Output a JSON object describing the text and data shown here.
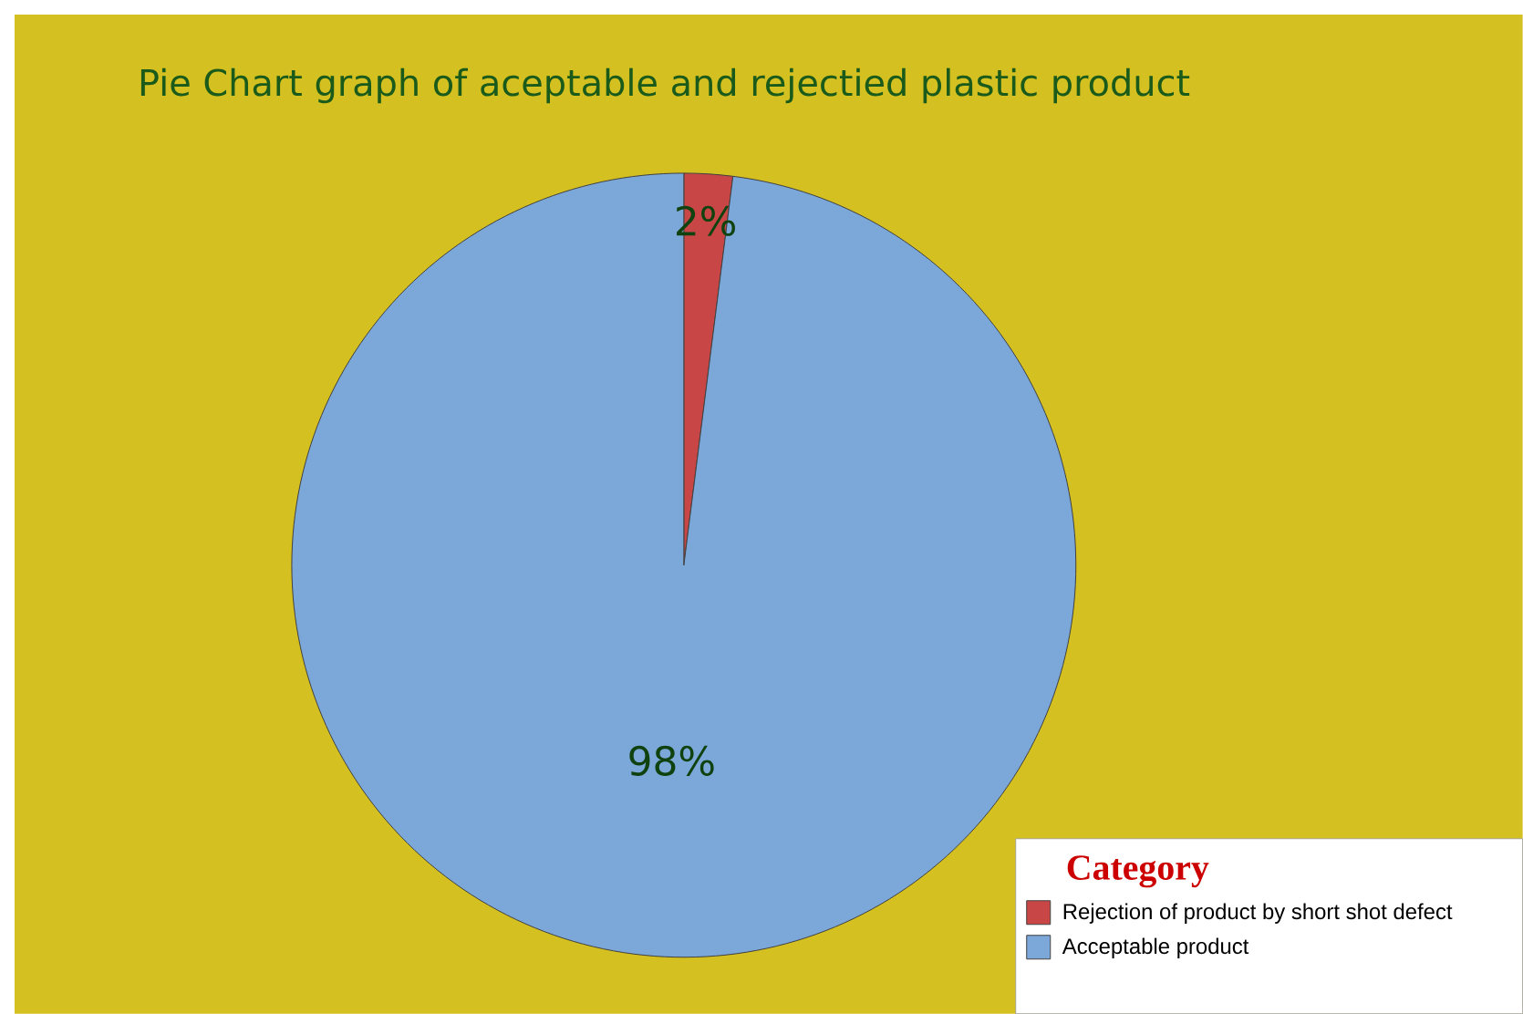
{
  "chart_data": {
    "type": "pie",
    "title": "Pie Chart graph of aceptable and rejectied plastic product",
    "categories": [
      "Rejection of product by short shot defect",
      "Acceptable product"
    ],
    "values": [
      2,
      98
    ],
    "colors": [
      "#c84646",
      "#7ba7d9"
    ],
    "value_labels": [
      "2%",
      "98%"
    ],
    "legend": "bottom right",
    "legend_title": "Category"
  }
}
